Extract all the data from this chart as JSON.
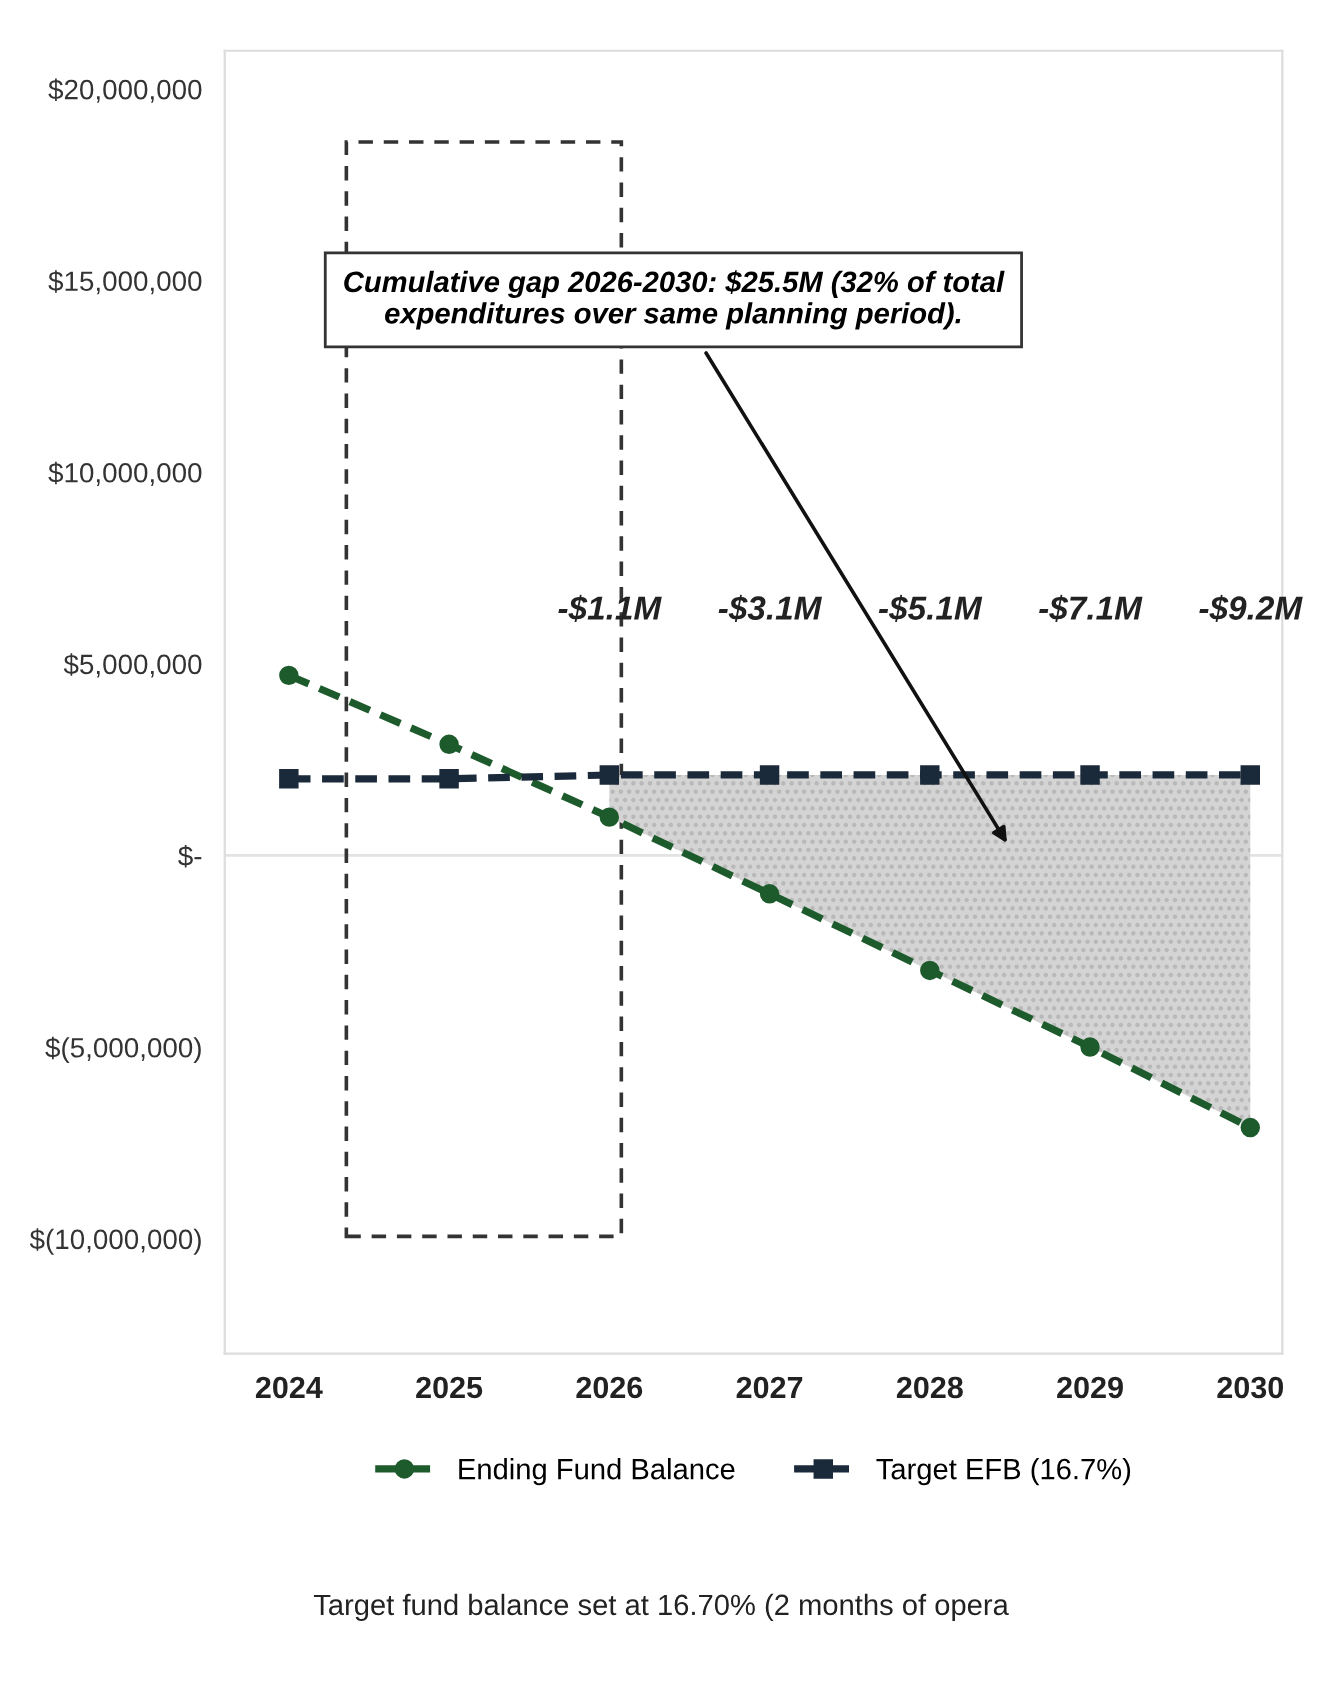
{
  "chart_data": {
    "type": "line",
    "x": [
      2024,
      2025,
      2026,
      2027,
      2028,
      2029,
      2030
    ],
    "xlim": [
      2023.6,
      2030.2
    ],
    "xticks": [
      2024,
      2025,
      2026,
      2027,
      2028,
      2029,
      2030
    ],
    "ylim": [
      -13000000,
      21000000
    ],
    "yticks": [
      {
        "value": 20000000,
        "label": "$20,000,000"
      },
      {
        "value": 15000000,
        "label": "$15,000,000"
      },
      {
        "value": 10000000,
        "label": "$10,000,000"
      },
      {
        "value": 5000000,
        "label": "$5,000,000"
      },
      {
        "value": 0,
        "label": "$-"
      },
      {
        "value": -5000000,
        "label": "$(5,000,000)"
      },
      {
        "value": -10000000,
        "label": "$(10,000,000)"
      }
    ],
    "series": [
      {
        "name": "Ending Fund Balance",
        "color": "#1e5b2c",
        "marker": "circle",
        "line_style": "dashed",
        "values": [
          4700000,
          2900000,
          1000000,
          -1000000,
          -3000000,
          -5000000,
          -7100000
        ],
        "lower": [
          null,
          null,
          1000000,
          -1000000,
          -3000000,
          -5000000,
          -7100000
        ],
        "upper": [
          null,
          null,
          2100000,
          2100000,
          2100000,
          2100000,
          2100000
        ]
      },
      {
        "name": "Target EFB (16.7%)",
        "color": "#1b2a3a",
        "marker": "square",
        "line_style": "dashed",
        "values": [
          2000000,
          2000000,
          2100000,
          2100000,
          2100000,
          2100000,
          2100000
        ]
      }
    ],
    "ref_lines": [
      {
        "axis": "y",
        "value": 0,
        "color": "#e3e3e3"
      }
    ],
    "annotations": [
      "-$1.1M",
      "-$3.1M",
      "-$5.1M",
      "-$7.1M",
      "-$9.2M",
      {
        "text": "Cumulative gap 2026-2030: $25.5M (32% of total\nexpenditures over same planning period).",
        "x": 2028.5,
        "y": 200000
      },
      "Target fund balance set at 16.70% (2 months of opera"
    ],
    "legend": "bottom",
    "grid": false
  }
}
